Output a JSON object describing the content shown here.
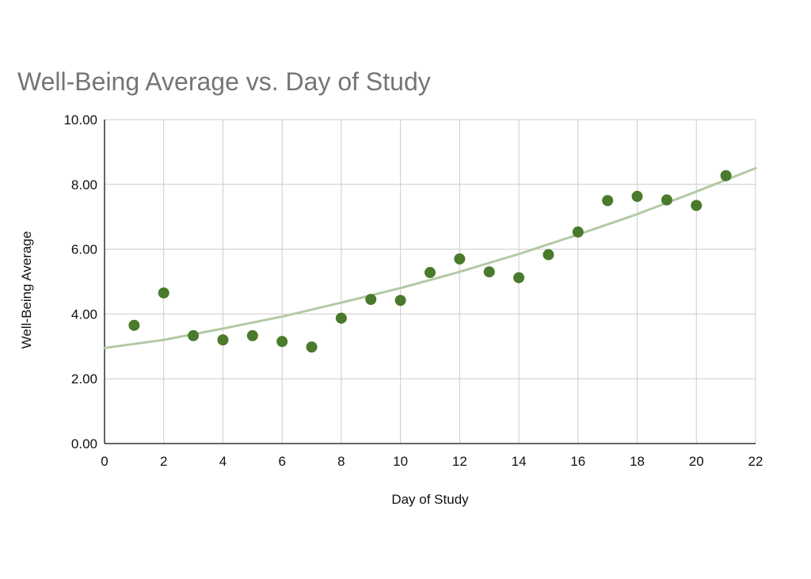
{
  "chart_data": {
    "type": "scatter",
    "title": "Well-Being Average vs. Day of Study",
    "xlabel": "Day of Study",
    "ylabel": "Well-Being Average",
    "xlim": [
      0,
      22
    ],
    "ylim": [
      0,
      10
    ],
    "x_ticks": [
      "0",
      "2",
      "4",
      "6",
      "8",
      "10",
      "12",
      "14",
      "16",
      "18",
      "20",
      "22"
    ],
    "y_ticks": [
      "0.00",
      "2.00",
      "4.00",
      "6.00",
      "8.00",
      "10.00"
    ],
    "grid": true,
    "legend": "none",
    "colors": {
      "points": "#4a7a2c",
      "trendline": "#b3c9a5",
      "title": "#757575"
    },
    "series": [
      {
        "x": [
          1,
          2,
          3,
          4,
          5,
          6,
          7,
          8,
          9,
          10,
          11,
          12,
          13,
          14,
          15,
          16,
          17,
          18,
          19,
          20,
          21
        ],
        "y": [
          3.65,
          4.65,
          3.33,
          3.2,
          3.33,
          3.15,
          2.98,
          3.87,
          4.45,
          4.42,
          5.28,
          5.7,
          5.3,
          5.12,
          5.83,
          6.53,
          7.5,
          7.63,
          7.52,
          7.35,
          8.27
        ]
      }
    ],
    "trendline": {
      "type": "polynomial-2",
      "x": [
        0,
        2,
        4,
        6,
        8,
        10,
        12,
        14,
        16,
        18,
        20,
        22
      ],
      "y": [
        2.95,
        3.2,
        3.55,
        3.92,
        4.35,
        4.8,
        5.3,
        5.85,
        6.45,
        7.08,
        7.78,
        8.5
      ]
    }
  }
}
